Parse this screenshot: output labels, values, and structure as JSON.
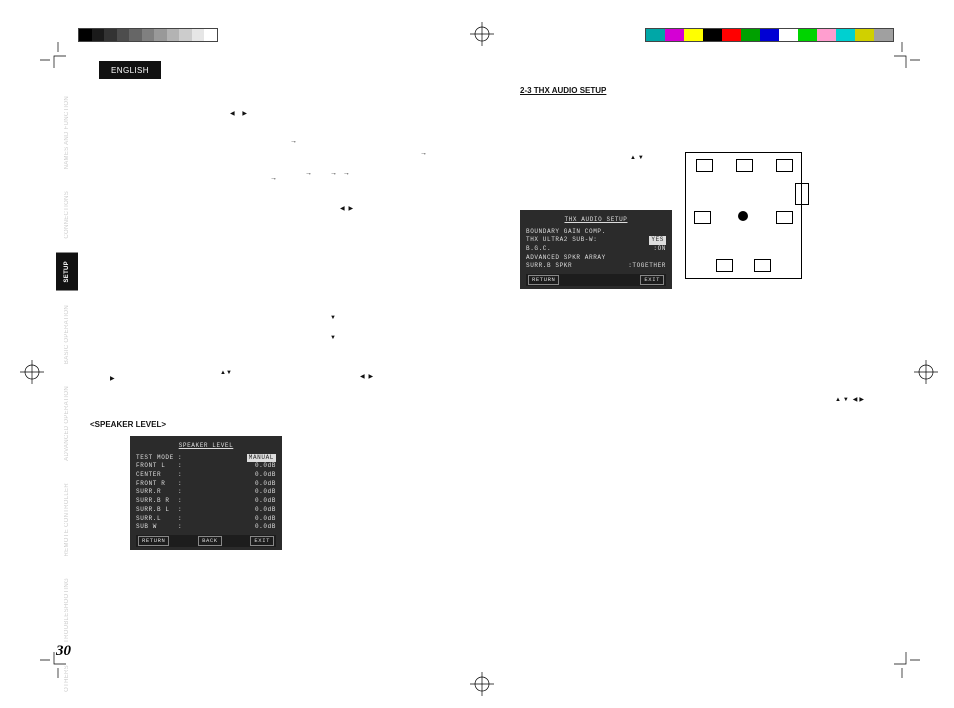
{
  "lang_tab": "ENGLISH",
  "side_tabs": [
    {
      "label": "NAMES AND FUNCTION",
      "active": false
    },
    {
      "label": "CONNECTIONS",
      "active": false
    },
    {
      "label": "SETUP",
      "active": true
    },
    {
      "label": "BASIC OPERATION",
      "active": false
    },
    {
      "label": "ADVANCED OPERATION",
      "active": false
    },
    {
      "label": "REMOTE CONTROLLER",
      "active": false
    },
    {
      "label": "TROUBLESHOOTING",
      "active": false
    },
    {
      "label": "OTHERS",
      "active": false
    }
  ],
  "page_number": "30",
  "thx_heading": "2-3 THX AUDIO SETUP",
  "speaker_level_heading": "<SPEAKER LEVEL>",
  "osd_thx": {
    "title": "THX AUDIO SETUP",
    "rows": [
      [
        "BOUNDARY GAIN COMP.",
        ""
      ],
      [
        "THX ULTRA2 SUB-W:",
        "YES"
      ],
      [
        "B.G.C.",
        ":ON"
      ],
      [
        "",
        ""
      ],
      [
        "ADVANCED SPKR ARRAY",
        ""
      ],
      [
        "SURR.B SPKR",
        ":TOGETHER"
      ]
    ],
    "highlight_row": 1,
    "foot_left": "RETURN",
    "foot_right": "EXIT"
  },
  "osd_spk": {
    "title": "SPEAKER LEVEL",
    "rows": [
      [
        "TEST MODE :",
        "MANUAL"
      ],
      [
        "FRONT L   :",
        "0.0dB"
      ],
      [
        "CENTER    :",
        "0.0dB"
      ],
      [
        "FRONT R   :",
        "0.0dB"
      ],
      [
        "SURR.R    :",
        "0.0dB"
      ],
      [
        "SURR.B R  :",
        "0.0dB"
      ],
      [
        "SURR.B L  :",
        "0.0dB"
      ],
      [
        "SURR.L    :",
        "0.0dB"
      ],
      [
        "SUB W     :",
        "0.0dB"
      ]
    ],
    "highlight_row": 0,
    "foot_left": "RETURN",
    "foot_mid": "BACK",
    "foot_right": "EXIT"
  },
  "grayramp_colors": [
    "#000000",
    "#1a1a1a",
    "#333333",
    "#4d4d4d",
    "#666666",
    "#808080",
    "#999999",
    "#b3b3b3",
    "#cccccc",
    "#e6e6e6",
    "#ffffff"
  ],
  "colorbar_colors": [
    "#00a7a7",
    "#d400d4",
    "#ffff00",
    "#000000",
    "#ff0000",
    "#00a000",
    "#0000d4",
    "#ffffff",
    "#00d400",
    "#ff9ecf",
    "#00d0d0",
    "#d0d000",
    "#a0a0a0"
  ],
  "tri_left": "◀",
  "tri_right": "▶",
  "tri_up": "▲",
  "tri_down": "▼",
  "arrow_right_thin": "→"
}
